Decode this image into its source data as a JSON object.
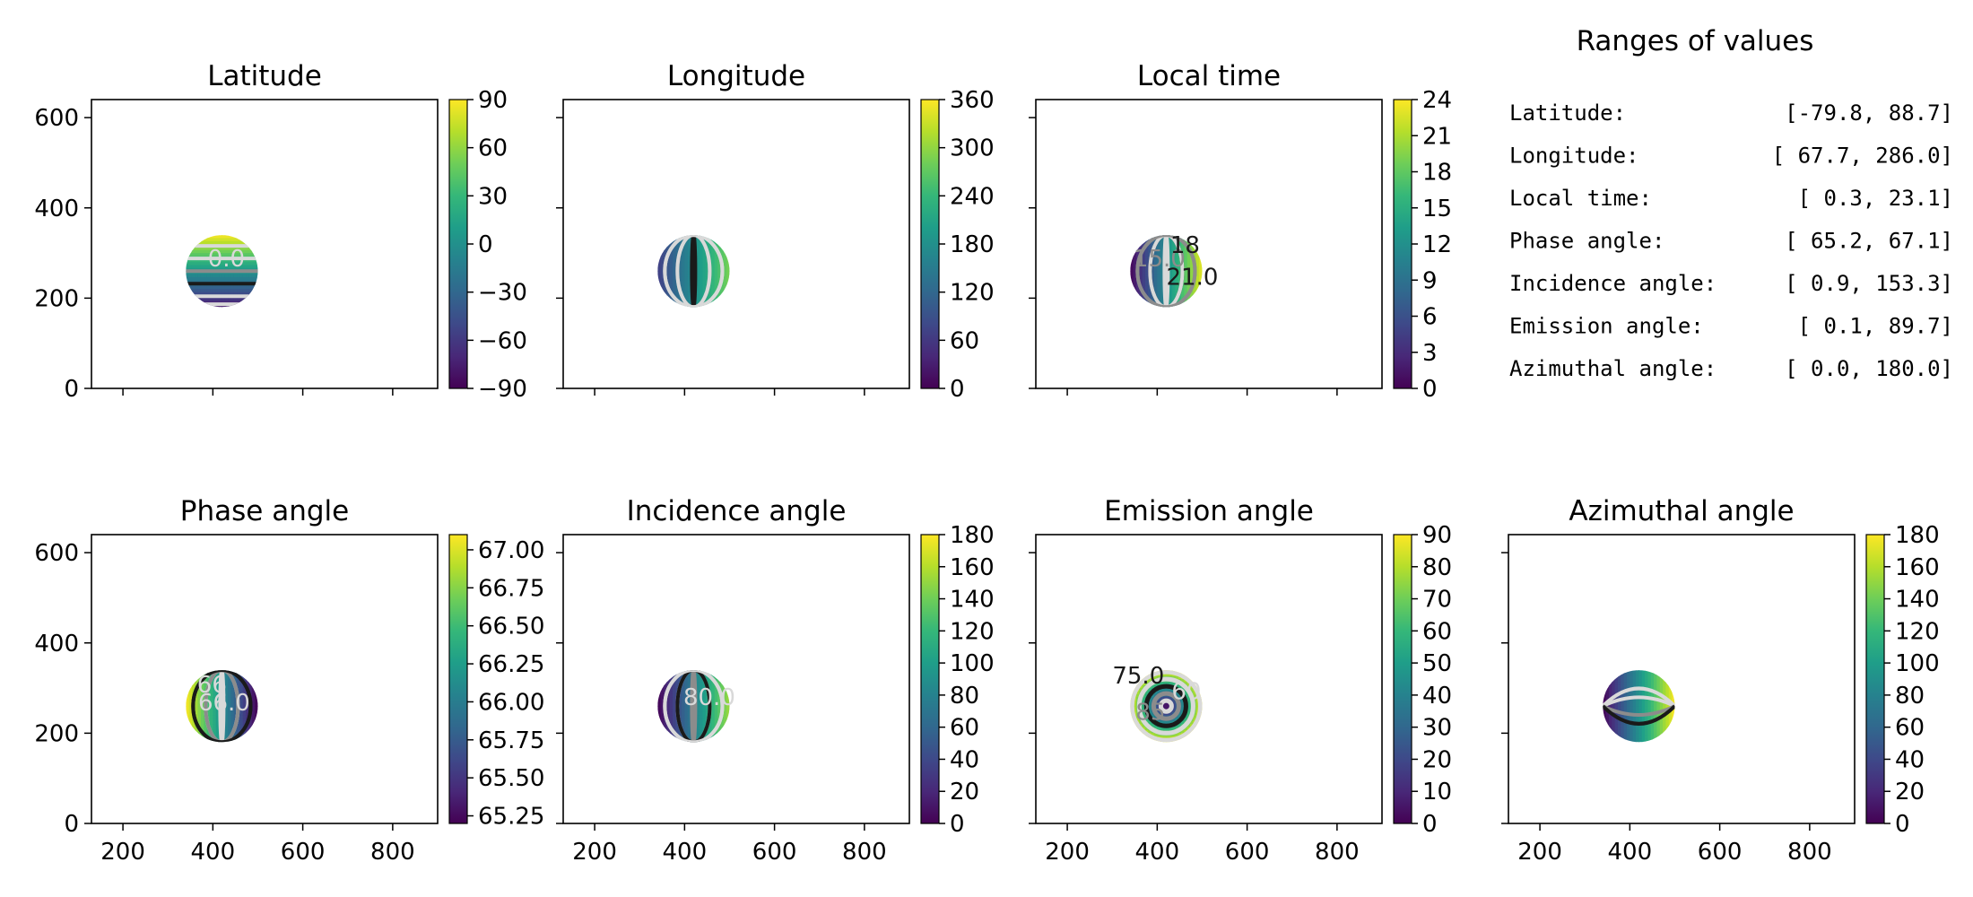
{
  "figure": {
    "ranges_title": "Ranges of values",
    "ranges": [
      {
        "label": "Latitude:",
        "value": "[-79.8,  88.7]"
      },
      {
        "label": "Longitude:",
        "value": "[ 67.7, 286.0]"
      },
      {
        "label": "Local time:",
        "value": "[  0.3,  23.1]"
      },
      {
        "label": "Phase angle:",
        "value": "[ 65.2,  67.1]"
      },
      {
        "label": "Incidence angle:",
        "value": "[  0.9, 153.3]"
      },
      {
        "label": "Emission angle:",
        "value": "[  0.1,  89.7]"
      },
      {
        "label": "Azimuthal angle:",
        "value": "[  0.0, 180.0]"
      }
    ]
  },
  "colors": {
    "viridis": [
      "#440154",
      "#482878",
      "#3e4989",
      "#31688e",
      "#26828e",
      "#1f9e89",
      "#35b779",
      "#6ece58",
      "#b5de2b",
      "#fde725"
    ],
    "contour_light": "#d9d9d9",
    "contour_mid": "#8c8c8c",
    "contour_dark": "#1a1a1a"
  },
  "chart_data": [
    {
      "type": "heatmap",
      "title": "Latitude",
      "xlim": [
        130,
        900
      ],
      "ylim": [
        0,
        640
      ],
      "xticks": [
        200,
        400,
        600,
        800
      ],
      "show_xticklabels": false,
      "yticks": [
        0,
        200,
        400,
        600
      ],
      "show_yticklabels": true,
      "yticklabels": [
        "0",
        "200",
        "400",
        "600"
      ],
      "disk": {
        "cx": 420,
        "cy": 260,
        "r": 80
      },
      "field": "latitude",
      "value_range": [
        -79.8,
        88.7
      ],
      "colorbar": {
        "min": -90,
        "max": 90,
        "ticks": [
          -90,
          -60,
          -30,
          0,
          30,
          60,
          90
        ],
        "ticklabels": [
          "−90",
          "−60",
          "−30",
          "0",
          "30",
          "60",
          "90"
        ]
      },
      "contour_labels": [
        {
          "text": "0.0",
          "x": 430,
          "y": 270,
          "color": "light"
        }
      ]
    },
    {
      "type": "heatmap",
      "title": "Longitude",
      "xlim": [
        130,
        900
      ],
      "ylim": [
        0,
        640
      ],
      "xticks": [
        200,
        400,
        600,
        800
      ],
      "show_xticklabels": false,
      "yticks": [
        0,
        200,
        400,
        600
      ],
      "show_yticklabels": false,
      "disk": {
        "cx": 420,
        "cy": 260,
        "r": 80
      },
      "field": "longitude",
      "value_range": [
        67.7,
        286.0
      ],
      "colorbar": {
        "min": 0,
        "max": 360,
        "ticks": [
          0,
          60,
          120,
          180,
          240,
          300,
          360
        ],
        "ticklabels": [
          "0",
          "60",
          "120",
          "180",
          "240",
          "300",
          "360"
        ]
      },
      "contour_labels": []
    },
    {
      "type": "heatmap",
      "title": "Local time",
      "xlim": [
        130,
        900
      ],
      "ylim": [
        0,
        640
      ],
      "xticks": [
        200,
        400,
        600,
        800
      ],
      "show_xticklabels": false,
      "yticks": [
        0,
        200,
        400,
        600
      ],
      "show_yticklabels": false,
      "disk": {
        "cx": 420,
        "cy": 260,
        "r": 80
      },
      "field": "localtime",
      "value_range": [
        0.3,
        23.1
      ],
      "colorbar": {
        "min": 0,
        "max": 24,
        "ticks": [
          0,
          3,
          6,
          9,
          12,
          15,
          18,
          21,
          24
        ],
        "ticklabels": [
          "0",
          "3",
          "6",
          "9",
          "12",
          "15",
          "18",
          "21",
          "24"
        ]
      },
      "contour_labels": [
        {
          "text": "15.0",
          "x": 405,
          "y": 270,
          "color": "mid"
        },
        {
          "text": "18",
          "x": 462,
          "y": 300,
          "color": "dark"
        },
        {
          "text": "21.0",
          "x": 478,
          "y": 230,
          "color": "dark"
        }
      ]
    },
    {
      "type": "heatmap",
      "title": "Phase angle",
      "xlim": [
        130,
        900
      ],
      "ylim": [
        0,
        640
      ],
      "xticks": [
        200,
        400,
        600,
        800
      ],
      "show_xticklabels": true,
      "xticklabels": [
        "200",
        "400",
        "600",
        "800"
      ],
      "yticks": [
        0,
        200,
        400,
        600
      ],
      "show_yticklabels": true,
      "yticklabels": [
        "0",
        "200",
        "400",
        "600"
      ],
      "disk": {
        "cx": 420,
        "cy": 260,
        "r": 80
      },
      "field": "phase",
      "value_range": [
        65.2,
        67.1
      ],
      "colorbar": {
        "min": 65.2,
        "max": 67.1,
        "ticks": [
          65.25,
          65.5,
          65.75,
          66.0,
          66.25,
          66.5,
          66.75,
          67.0
        ],
        "ticklabels": [
          "65.25",
          "65.50",
          "65.75",
          "66.00",
          "66.25",
          "66.50",
          "66.75",
          "67.00"
        ]
      },
      "contour_labels": [
        {
          "text": "66.0",
          "x": 425,
          "y": 250,
          "color": "light"
        },
        {
          "text": "66",
          "x": 398,
          "y": 290,
          "color": "light"
        }
      ]
    },
    {
      "type": "heatmap",
      "title": "Incidence angle",
      "xlim": [
        130,
        900
      ],
      "ylim": [
        0,
        640
      ],
      "xticks": [
        200,
        400,
        600,
        800
      ],
      "show_xticklabels": true,
      "xticklabels": [
        "200",
        "400",
        "600",
        "800"
      ],
      "yticks": [
        0,
        200,
        400,
        600
      ],
      "show_yticklabels": false,
      "disk": {
        "cx": 420,
        "cy": 260,
        "r": 80
      },
      "field": "incidence",
      "value_range": [
        0.9,
        153.3
      ],
      "colorbar": {
        "min": 0,
        "max": 180,
        "ticks": [
          0,
          20,
          40,
          60,
          80,
          100,
          120,
          140,
          160,
          180
        ],
        "ticklabels": [
          "0",
          "20",
          "40",
          "60",
          "80",
          "100",
          "120",
          "140",
          "160",
          "180"
        ]
      },
      "contour_labels": [
        {
          "text": "80.0",
          "x": 455,
          "y": 262,
          "color": "light"
        }
      ]
    },
    {
      "type": "heatmap",
      "title": "Emission angle",
      "xlim": [
        130,
        900
      ],
      "ylim": [
        0,
        640
      ],
      "xticks": [
        200,
        400,
        600,
        800
      ],
      "show_xticklabels": true,
      "xticklabels": [
        "200",
        "400",
        "600",
        "800"
      ],
      "yticks": [
        0,
        200,
        400,
        600
      ],
      "show_yticklabels": false,
      "disk": {
        "cx": 420,
        "cy": 260,
        "r": 80
      },
      "field": "emission",
      "value_range": [
        0.1,
        89.7
      ],
      "colorbar": {
        "min": 0,
        "max": 90,
        "ticks": [
          0,
          10,
          20,
          30,
          40,
          50,
          60,
          70,
          80,
          90
        ],
        "ticklabels": [
          "0",
          "10",
          "20",
          "30",
          "40",
          "50",
          "60",
          "70",
          "80",
          "90"
        ]
      },
      "contour_labels": [
        {
          "text": "75.0",
          "x": 358,
          "y": 310,
          "color": "dark"
        },
        {
          "text": "85",
          "x": 385,
          "y": 230,
          "color": "mid"
        },
        {
          "text": "60",
          "x": 465,
          "y": 275,
          "color": "light"
        }
      ]
    },
    {
      "type": "heatmap",
      "title": "Azimuthal angle",
      "xlim": [
        130,
        900
      ],
      "ylim": [
        0,
        640
      ],
      "xticks": [
        200,
        400,
        600,
        800
      ],
      "show_xticklabels": true,
      "xticklabels": [
        "200",
        "400",
        "600",
        "800"
      ],
      "yticks": [
        0,
        200,
        400,
        600
      ],
      "show_yticklabels": false,
      "disk": {
        "cx": 420,
        "cy": 260,
        "r": 80
      },
      "field": "azimuth",
      "value_range": [
        0.0,
        180.0
      ],
      "colorbar": {
        "min": 0,
        "max": 180,
        "ticks": [
          0,
          20,
          40,
          60,
          80,
          100,
          120,
          140,
          160,
          180
        ],
        "ticklabels": [
          "0",
          "20",
          "40",
          "60",
          "80",
          "100",
          "120",
          "140",
          "160",
          "180"
        ]
      },
      "contour_labels": []
    }
  ]
}
